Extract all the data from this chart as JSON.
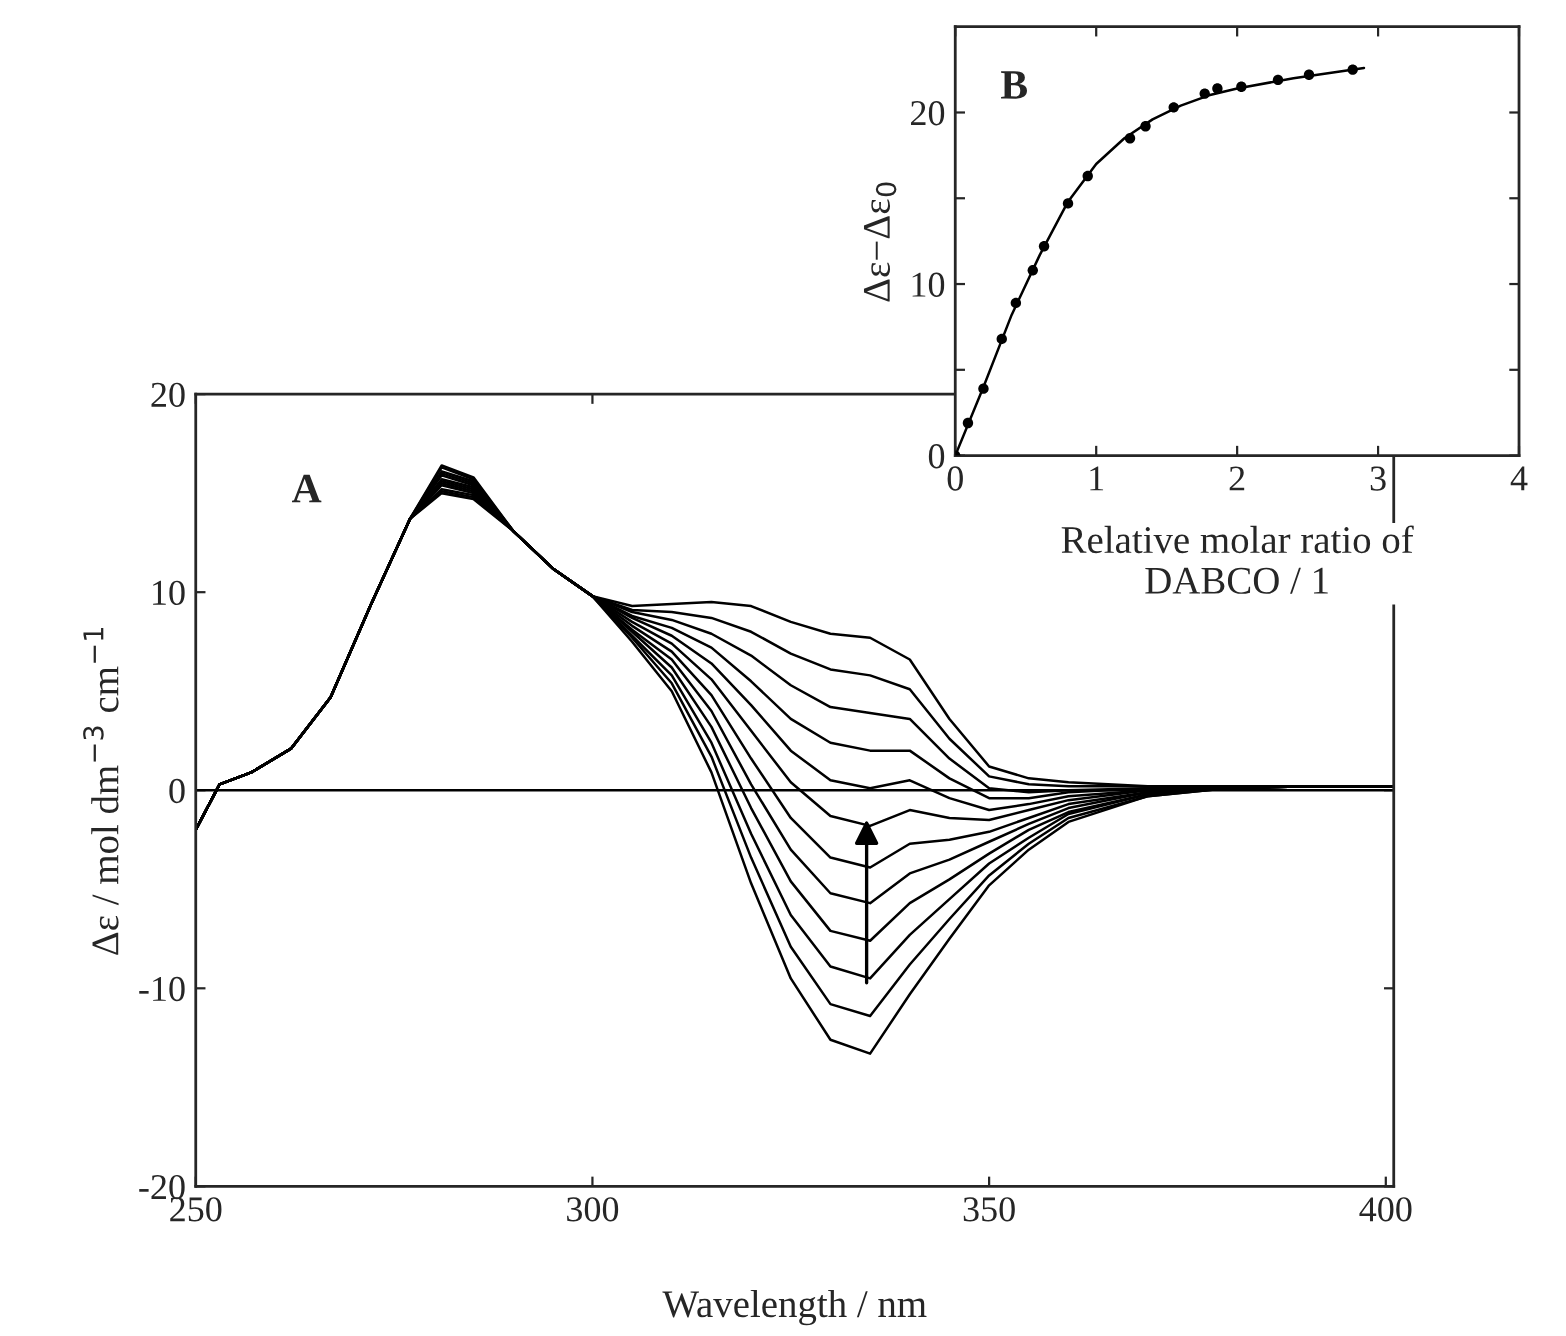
{
  "chart_data": [
    {
      "type": "line",
      "xlabel": "Wavelength / nm",
      "ylabel": "Δε / mol dm$^{−3}$ cm$^{−1}$",
      "annotations": [
        "A"
      ],
      "xlim": [
        250,
        401
      ],
      "ylim": [
        -20,
        20
      ],
      "xticks": [
        250,
        300,
        350,
        400
      ],
      "yticks": [
        -20,
        -10,
        0,
        10,
        20
      ],
      "grid": false,
      "legend": false,
      "line_style": "solid",
      "ref_lines": [
        {
          "axis": "y",
          "value": 0,
          "color": "#000000"
        }
      ],
      "x": [
        250,
        253,
        257,
        262,
        267,
        272,
        277,
        281,
        285,
        290,
        295,
        300,
        305,
        310,
        315,
        320,
        325,
        330,
        335,
        340,
        345,
        350,
        355,
        360,
        370,
        380,
        390,
        401
      ],
      "series": [
        {
          "color": "#000000",
          "values": [
            -2,
            0.3,
            0.9,
            2.1,
            4.7,
            9.3,
            13.7,
            16.4,
            15.8,
            13.1,
            11.2,
            9.8,
            7.5,
            5.0,
            0.9,
            -4.7,
            -9.5,
            -12.6,
            -13.3,
            -10.3,
            -7.5,
            -4.8,
            -3.0,
            -1.6,
            -0.3,
            0.1,
            0.2,
            0.2
          ]
        },
        {
          "color": "#000000",
          "values": [
            -2,
            0.3,
            0.9,
            2.1,
            4.7,
            9.3,
            13.7,
            16.3,
            15.7,
            13.1,
            11.2,
            9.8,
            7.7,
            5.4,
            1.7,
            -3.4,
            -7.9,
            -10.8,
            -11.4,
            -8.8,
            -6.5,
            -4.3,
            -2.7,
            -1.4,
            -0.3,
            0.1,
            0.2,
            0.2
          ]
        },
        {
          "color": "#000000",
          "values": [
            -2,
            0.3,
            0.9,
            2.1,
            4.7,
            9.3,
            13.7,
            16.1,
            15.6,
            13.1,
            11.2,
            9.8,
            7.8,
            5.8,
            2.4,
            -2.2,
            -6.3,
            -8.9,
            -9.5,
            -7.3,
            -5.5,
            -3.7,
            -2.4,
            -1.2,
            -0.2,
            0.1,
            0.2,
            0.2
          ]
        },
        {
          "color": "#000000",
          "values": [
            -2,
            0.3,
            0.9,
            2.1,
            4.7,
            9.3,
            13.7,
            16.0,
            15.5,
            13.1,
            11.2,
            9.8,
            8.0,
            6.2,
            3.2,
            -0.9,
            -4.6,
            -7.1,
            -7.6,
            -5.7,
            -4.5,
            -3.2,
            -2.0,
            -1.1,
            -0.2,
            0.1,
            0.2,
            0.2
          ]
        },
        {
          "color": "#000000",
          "values": [
            -2,
            0.3,
            0.9,
            2.1,
            4.7,
            9.3,
            13.7,
            15.9,
            15.4,
            13.1,
            11.2,
            9.8,
            8.1,
            6.6,
            4.0,
            0.3,
            -3.0,
            -5.2,
            -5.7,
            -4.2,
            -3.5,
            -2.6,
            -1.7,
            -0.9,
            -0.1,
            0.1,
            0.2,
            0.2
          ]
        },
        {
          "color": "#000000",
          "values": [
            -2,
            0.3,
            0.9,
            2.1,
            4.7,
            9.3,
            13.7,
            15.7,
            15.3,
            13.1,
            11.2,
            9.8,
            8.3,
            7.0,
            4.8,
            1.6,
            -1.4,
            -3.4,
            -3.9,
            -2.7,
            -2.5,
            -2.1,
            -1.4,
            -0.7,
            -0.1,
            0.2,
            0.2,
            0.2
          ]
        },
        {
          "color": "#000000",
          "values": [
            -2,
            0.3,
            0.9,
            2.1,
            4.7,
            9.3,
            13.7,
            15.6,
            15.2,
            13.1,
            11.2,
            9.8,
            8.5,
            7.4,
            5.6,
            3.0,
            0.4,
            -1.3,
            -1.8,
            -1.0,
            -1.4,
            -1.5,
            -1.0,
            -0.5,
            0.0,
            0.2,
            0.2,
            0.2
          ]
        },
        {
          "color": "#000000",
          "values": [
            -2,
            0.3,
            0.9,
            2.1,
            4.7,
            9.3,
            13.7,
            15.5,
            15.1,
            13.1,
            11.2,
            9.8,
            8.7,
            7.8,
            6.4,
            4.3,
            2.0,
            0.5,
            0.1,
            0.5,
            -0.4,
            -1.0,
            -0.7,
            -0.3,
            0.0,
            0.2,
            0.2,
            0.2
          ]
        },
        {
          "color": "#000000",
          "values": [
            -2,
            0.3,
            0.9,
            2.1,
            4.7,
            9.3,
            13.7,
            15.4,
            15.0,
            13.1,
            11.2,
            9.8,
            8.8,
            8.2,
            7.2,
            5.5,
            3.6,
            2.4,
            2.0,
            2.0,
            0.6,
            -0.4,
            -0.4,
            -0.1,
            0.1,
            0.2,
            0.2,
            0.2
          ]
        },
        {
          "color": "#000000",
          "values": [
            -2,
            0.3,
            0.9,
            2.1,
            4.7,
            9.3,
            13.7,
            15.2,
            14.9,
            13.1,
            11.2,
            9.8,
            9.0,
            8.6,
            7.9,
            6.8,
            5.3,
            4.2,
            3.9,
            3.6,
            1.6,
            0.1,
            -0.1,
            0.0,
            0.1,
            0.2,
            0.2,
            0.2
          ]
        },
        {
          "color": "#000000",
          "values": [
            -2,
            0.3,
            0.9,
            2.1,
            4.7,
            9.3,
            13.7,
            15.1,
            14.8,
            13.1,
            11.2,
            9.8,
            9.1,
            9.0,
            8.7,
            8.0,
            6.9,
            6.1,
            5.8,
            5.1,
            2.6,
            0.7,
            0.3,
            0.2,
            0.2,
            0.2,
            0.2,
            0.2
          ]
        },
        {
          "color": "#000000",
          "values": [
            -2,
            0.3,
            0.9,
            2.1,
            4.7,
            9.3,
            13.7,
            15.0,
            14.7,
            13.1,
            11.2,
            9.8,
            9.3,
            9.4,
            9.5,
            9.3,
            8.5,
            7.9,
            7.7,
            6.6,
            3.6,
            1.2,
            0.6,
            0.4,
            0.2,
            0.2,
            0.2,
            0.2
          ]
        }
      ]
    },
    {
      "type": "scatter",
      "xlabel": "Relative molar ratio of\nDABCO / 1",
      "ylabel": "Δε−Δε$_{0}$",
      "annotations": [
        "B"
      ],
      "xlim": [
        0,
        4
      ],
      "ylim": [
        0,
        25
      ],
      "xticks": [
        0,
        1,
        2,
        3,
        4
      ],
      "yticks": [
        0,
        {
          "value": 5,
          "label": null
        },
        10,
        {
          "value": 15,
          "label": null
        },
        20
      ],
      "grid": false,
      "legend": false,
      "series": [
        {
          "type": "scatter",
          "marker": "circle",
          "color": "#000000",
          "x": [
            0,
            0.09,
            0.2,
            0.33,
            0.43,
            0.55,
            0.63,
            0.8,
            0.94,
            1.24,
            1.35,
            1.55,
            1.77,
            1.86,
            2.03,
            2.29,
            2.51,
            2.82
          ],
          "values": [
            0,
            1.9,
            3.9,
            6.8,
            8.9,
            10.8,
            12.2,
            14.7,
            16.3,
            18.5,
            19.2,
            20.3,
            21.1,
            21.4,
            21.5,
            21.9,
            22.2,
            22.5
          ]
        },
        {
          "type": "line",
          "color": "#000000",
          "x": [
            0,
            0.2,
            0.4,
            0.6,
            0.8,
            1.0,
            1.2,
            1.4,
            1.6,
            1.8,
            2.0,
            2.4,
            2.9
          ],
          "values": [
            0,
            4,
            8.2,
            11.7,
            14.8,
            17,
            18.5,
            19.6,
            20.4,
            21,
            21.4,
            22,
            22.6
          ]
        }
      ]
    }
  ]
}
